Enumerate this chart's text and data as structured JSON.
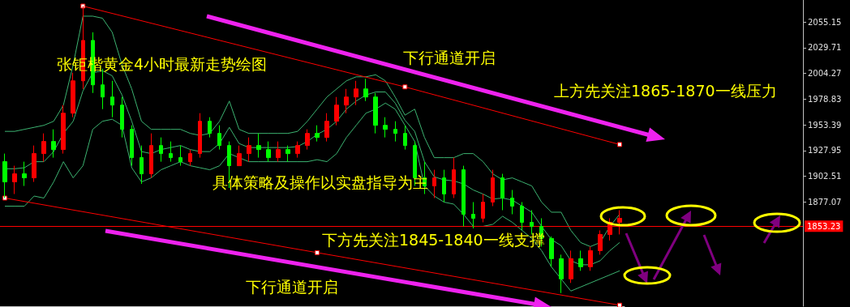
{
  "chart_data": {
    "type": "candlestick",
    "categories": [
      null,
      null,
      null,
      null,
      null,
      null,
      null,
      null,
      null,
      null,
      null,
      null,
      null,
      null,
      null,
      null,
      null,
      null,
      null,
      null,
      null,
      null,
      null,
      null,
      null,
      null,
      null,
      null,
      null,
      null,
      null,
      null,
      null,
      null,
      null,
      null,
      null,
      null,
      null,
      null,
      null,
      null,
      null,
      null,
      null,
      null,
      null,
      null,
      null,
      null,
      null,
      null,
      null,
      null,
      null,
      null,
      null,
      null,
      null,
      null,
      null,
      null,
      null,
      null
    ],
    "ohlc": [
      [
        1917,
        1925,
        1881,
        1897
      ],
      [
        1897,
        1913,
        1885,
        1905
      ],
      [
        1905,
        1917,
        1893,
        1901
      ],
      [
        1901,
        1933,
        1897,
        1925
      ],
      [
        1925,
        1945,
        1917,
        1937
      ],
      [
        1937,
        1949,
        1921,
        1929
      ],
      [
        1929,
        1973,
        1925,
        1965
      ],
      [
        1965,
        2005,
        1961,
        1997
      ],
      [
        1997,
        2071,
        1989,
        2037
      ],
      [
        2037,
        2045,
        1985,
        1993
      ],
      [
        1993,
        2009,
        1969,
        1981
      ],
      [
        1981,
        1997,
        1961,
        1973
      ],
      [
        1973,
        1981,
        1941,
        1949
      ],
      [
        1949,
        1953,
        1913,
        1921
      ],
      [
        1921,
        1933,
        1895,
        1905
      ],
      [
        1905,
        1945,
        1901,
        1933
      ],
      [
        1933,
        1941,
        1917,
        1925
      ],
      [
        1925,
        1937,
        1917,
        1921
      ],
      [
        1921,
        1933,
        1913,
        1917
      ],
      [
        1917,
        1929,
        1913,
        1925
      ],
      [
        1925,
        1965,
        1921,
        1957
      ],
      [
        1957,
        1961,
        1941,
        1945
      ],
      [
        1945,
        1953,
        1929,
        1933
      ],
      [
        1933,
        1937,
        1891,
        1913
      ],
      [
        1913,
        1933,
        1913,
        1925
      ],
      [
        1925,
        1941,
        1917,
        1933
      ],
      [
        1933,
        1945,
        1921,
        1929
      ],
      [
        1929,
        1937,
        1917,
        1921
      ],
      [
        1921,
        1937,
        1917,
        1929
      ],
      [
        1929,
        1933,
        1917,
        1925
      ],
      [
        1925,
        1937,
        1921,
        1933
      ],
      [
        1933,
        1949,
        1929,
        1945
      ],
      [
        1945,
        1953,
        1937,
        1941
      ],
      [
        1941,
        1965,
        1937,
        1957
      ],
      [
        1957,
        1981,
        1953,
        1973
      ],
      [
        1973,
        1989,
        1965,
        1981
      ],
      [
        1981,
        1997,
        1973,
        1989
      ],
      [
        1989,
        1999,
        1977,
        1981
      ],
      [
        1981,
        1985,
        1945,
        1953
      ],
      [
        1953,
        1961,
        1941,
        1949
      ],
      [
        1949,
        1957,
        1937,
        1945
      ],
      [
        1945,
        1953,
        1929,
        1933
      ],
      [
        1933,
        1937,
        1893,
        1901
      ],
      [
        1901,
        1917,
        1885,
        1893
      ],
      [
        1893,
        1909,
        1881,
        1901
      ],
      [
        1901,
        1909,
        1877,
        1885
      ],
      [
        1885,
        1921,
        1881,
        1909
      ],
      [
        1909,
        1913,
        1853,
        1865
      ],
      [
        1865,
        1877,
        1851,
        1861
      ],
      [
        1861,
        1885,
        1857,
        1877
      ],
      [
        1877,
        1909,
        1873,
        1901
      ],
      [
        1901,
        1905,
        1869,
        1881
      ],
      [
        1881,
        1889,
        1865,
        1873
      ],
      [
        1873,
        1877,
        1849,
        1857
      ],
      [
        1857,
        1869,
        1845,
        1853
      ],
      [
        1853,
        1861,
        1833,
        1841
      ],
      [
        1841,
        1843,
        1813,
        1821
      ],
      [
        1821,
        1825,
        1787,
        1801
      ],
      [
        1801,
        1829,
        1797,
        1821
      ],
      [
        1821,
        1829,
        1809,
        1813
      ],
      [
        1813,
        1833,
        1809,
        1829
      ],
      [
        1829,
        1849,
        1825,
        1845
      ],
      [
        1845,
        1861,
        1839,
        1857
      ],
      [
        1857,
        1869,
        1845,
        1861
      ]
    ],
    "colors": [
      "#00ff00",
      "#ff0000",
      "#00ff00",
      "#ff0000",
      "#ff0000",
      "#00ff00",
      "#ff0000",
      "#ff0000",
      "#ff0000",
      "#00ff00",
      "#00ff00",
      "#00ff00",
      "#00ff00",
      "#00ff00",
      "#00ff00",
      "#ff0000",
      "#00ff00",
      "#00ff00",
      "#00ff00",
      "#ff0000",
      "#ff0000",
      "#00ff00",
      "#00ff00",
      "#00ff00",
      "#ff0000",
      "#ff0000",
      "#00ff00",
      "#00ff00",
      "#ff0000",
      "#00ff00",
      "#ff0000",
      "#ff0000",
      "#00ff00",
      "#ff0000",
      "#ff0000",
      "#ff0000",
      "#ff0000",
      "#00ff00",
      "#00ff00",
      "#00ff00",
      "#00ff00",
      "#00ff00",
      "#00ff00",
      "#00ff00",
      "#ff0000",
      "#00ff00",
      "#ff0000",
      "#00ff00",
      "#00ff00",
      "#ff0000",
      "#ff0000",
      "#00ff00",
      "#00ff00",
      "#00ff00",
      "#00ff00",
      "#00ff00",
      "#00ff00",
      "#00ff00",
      "#ff0000",
      "#00ff00",
      "#ff0000",
      "#ff0000",
      "#ff0000",
      "#ff0000"
    ],
    "series": [
      {
        "type": "line",
        "color": "#3cb371",
        "values": [
          1947,
          1947,
          1949,
          1951,
          1953,
          1957,
          1973,
          2013,
          2061,
          2061,
          2059,
          2045,
          2013,
          1989,
          1957,
          1949,
          1949,
          1949,
          1949,
          1945,
          1943,
          1945,
          1957,
          1977,
          1949,
          1945,
          1945,
          1945,
          1945,
          1945,
          1947,
          1957,
          1969,
          1981,
          1989,
          1997,
          2001,
          2001,
          2003,
          1997,
          1981,
          1963,
          1969,
          1941,
          1921,
          1921,
          1921,
          1925,
          1925,
          1917,
          1905,
          1899,
          1901,
          1897,
          1893,
          1877,
          1867,
          1867,
          1849,
          1837,
          1833,
          1837,
          1853,
          1865
        ]
      },
      {
        "type": "line",
        "color": "#3cb371",
        "values": [
          1910,
          1910,
          1911,
          1917,
          1917,
          1927,
          1945,
          1957,
          1987,
          2005,
          2007,
          2002,
          1983,
          1957,
          1927,
          1925,
          1929,
          1931,
          1933,
          1929,
          1927,
          1927,
          1935,
          1951,
          1935,
          1931,
          1931,
          1931,
          1931,
          1931,
          1932,
          1937,
          1944,
          1949,
          1957,
          1969,
          1977,
          1983,
          1986,
          1986,
          1975,
          1958,
          1947,
          1917,
          1902,
          1899,
          1898,
          1895,
          1889,
          1885,
          1880,
          1881,
          1879,
          1873,
          1867,
          1853,
          1840,
          1834,
          1819,
          1815,
          1815,
          1819,
          1829,
          1837
        ]
      },
      {
        "type": "line",
        "color": "#3cb371",
        "values": [
          1873,
          1873,
          1873,
          1883,
          1881,
          1897,
          1917,
          1901,
          1913,
          1949,
          1957,
          1959,
          1953,
          1911,
          1897,
          1901,
          1909,
          1913,
          1917,
          1913,
          1911,
          1909,
          1913,
          1925,
          1921,
          1917,
          1917,
          1917,
          1917,
          1917,
          1917,
          1917,
          1919,
          1917,
          1925,
          1941,
          1953,
          1965,
          1969,
          1975,
          1969,
          1953,
          1937,
          1893,
          1883,
          1877,
          1875,
          1865,
          1853,
          1853,
          1855,
          1863,
          1857,
          1849,
          1841,
          1829,
          1813,
          1801,
          1789,
          1793,
          1797,
          1801,
          1805,
          1809
        ]
      },
      {
        "type": "line",
        "color": "#ff0000",
        "marker": "square",
        "values": [
          null,
          null,
          null,
          null,
          null,
          null,
          null,
          null,
          2071,
          null,
          null,
          null,
          null,
          null,
          null,
          null,
          null,
          null,
          null,
          null,
          null,
          null,
          null,
          null,
          null,
          null,
          null,
          null,
          null,
          null,
          null,
          null,
          null,
          null,
          null,
          null,
          null,
          null,
          null,
          null,
          null,
          1991,
          null,
          null,
          null,
          null,
          null,
          null,
          null,
          null,
          null,
          null,
          null,
          null,
          null,
          null,
          null,
          null,
          null,
          null,
          null,
          null,
          null,
          1934
        ]
      },
      {
        "type": "line",
        "color": "#ff0000",
        "marker": "square",
        "values": [
          1881,
          null,
          null,
          null,
          null,
          null,
          null,
          null,
          null,
          null,
          null,
          null,
          null,
          null,
          null,
          null,
          null,
          null,
          null,
          null,
          null,
          null,
          null,
          null,
          null,
          null,
          null,
          null,
          null,
          null,
          null,
          null,
          1827,
          null,
          null,
          null,
          null,
          null,
          null,
          null,
          null,
          null,
          null,
          null,
          null,
          null,
          null,
          null,
          null,
          null,
          null,
          null,
          null,
          null,
          null,
          null,
          null,
          null,
          null,
          null,
          null,
          null,
          null,
          1775
        ]
      }
    ],
    "ylim": [
      1774,
      2077
    ],
    "yticks": [
      1877.07,
      1902.51,
      1927.95,
      1953.39,
      1978.83,
      2004.27,
      2029.71,
      2055.15
    ],
    "tick_labels": "y",
    "grid": false,
    "ref_lines": [
      {
        "axis": "y",
        "value": 1853.23,
        "label": "1853.23",
        "color": "#ff0000"
      }
    ],
    "annotations": [
      "张钜楷黄金4小时最新走势绘图",
      "下行通道开启",
      "上方先关注1865-1870一线压力",
      "具体策略及操作以实盘指导为主",
      "下方先关注1845-1840一线支撑",
      "下行通道开启"
    ]
  }
}
